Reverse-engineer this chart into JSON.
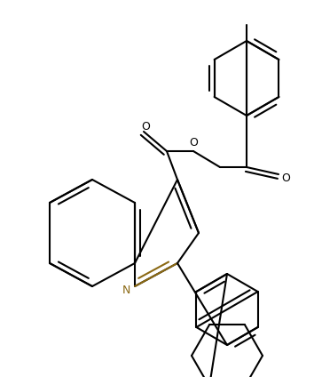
{
  "bg_color": "#ffffff",
  "bond_color": "#000000",
  "N_color": "#8B6914",
  "line_width": 1.5,
  "figsize": [
    3.54,
    4.24
  ],
  "dpi": 100,
  "xlim": [
    0,
    354
  ],
  "ylim": [
    0,
    424
  ]
}
